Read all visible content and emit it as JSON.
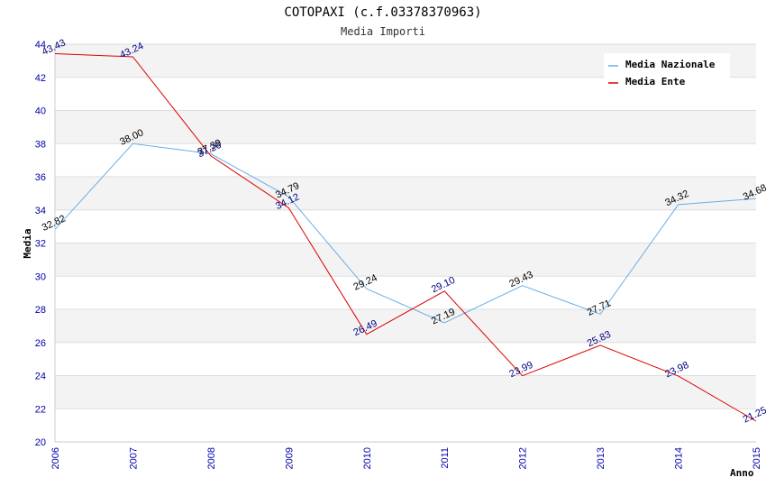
{
  "chart_data": {
    "type": "line",
    "title": "COTOPAXI (c.f.03378370963)",
    "subtitle": "Media Importi",
    "xlabel": "Anno",
    "ylabel": "Media",
    "x": [
      "2006",
      "2007",
      "2008",
      "2009",
      "2010",
      "2011",
      "2012",
      "2013",
      "2014",
      "2015"
    ],
    "yticks": [
      "20",
      "22",
      "24",
      "26",
      "28",
      "30",
      "32",
      "34",
      "36",
      "38",
      "40",
      "42",
      "44"
    ],
    "ylim": [
      20,
      44
    ],
    "grid": "horizontal bands",
    "legend_position": "top-right",
    "series": [
      {
        "name": "Media Nazionale",
        "color": "#6aaee6",
        "label_color": "#000000",
        "values": [
          32.82,
          38.0,
          37.39,
          34.79,
          29.24,
          27.19,
          29.43,
          27.71,
          34.32,
          34.68
        ],
        "labels": [
          "32.82",
          "38.00",
          "37.39",
          "34.79",
          "29.24",
          "27.19",
          "29.43",
          "27.71",
          "34.32",
          "34.68"
        ]
      },
      {
        "name": "Media Ente",
        "color": "#dd0000",
        "label_color": "#000080",
        "values": [
          43.43,
          43.24,
          37.26,
          34.12,
          26.49,
          29.1,
          23.99,
          25.83,
          23.98,
          21.25
        ],
        "labels": [
          "43.43",
          "43.24",
          "37.26",
          "34.12",
          "26.49",
          "29.10",
          "23.99",
          "25.83",
          "23.98",
          "21.25"
        ]
      }
    ]
  }
}
